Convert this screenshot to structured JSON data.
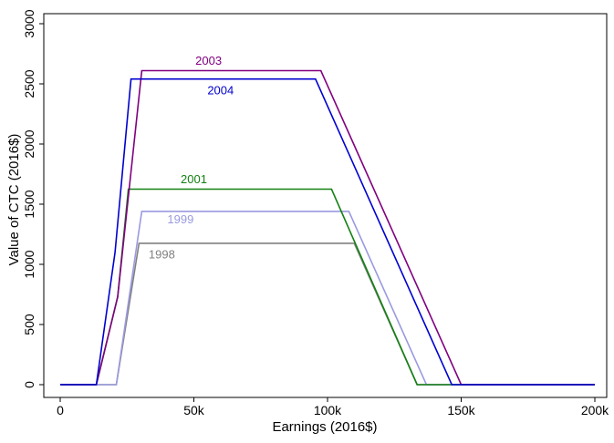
{
  "chart_data": {
    "type": "line",
    "title": "",
    "xlabel": "Earnings (2016$)",
    "ylabel": "Value of CTC (2016$)",
    "xlim": [
      0,
      200000
    ],
    "ylim": [
      0,
      3000
    ],
    "grid": false,
    "legend": "none",
    "x_ticks": [
      {
        "value": 0,
        "label": "0"
      },
      {
        "value": 50000,
        "label": "50k"
      },
      {
        "value": 100000,
        "label": "100k"
      },
      {
        "value": 150000,
        "label": "150k"
      },
      {
        "value": 200000,
        "label": "200k"
      }
    ],
    "y_ticks": [
      {
        "value": 0,
        "label": "0"
      },
      {
        "value": 500,
        "label": "500"
      },
      {
        "value": 1000,
        "label": "1000"
      },
      {
        "value": 1500,
        "label": "1500"
      },
      {
        "value": 2000,
        "label": "2000"
      },
      {
        "value": 2500,
        "label": "2500"
      },
      {
        "value": 3000,
        "label": "3000"
      }
    ],
    "series": [
      {
        "name": "1998",
        "color": "#808080",
        "label_at": [
          38000,
          1080
        ],
        "points": [
          [
            0,
            0
          ],
          [
            21000,
            0
          ],
          [
            29500,
            1175
          ],
          [
            110000,
            1175
          ],
          [
            133500,
            0
          ],
          [
            200000,
            0
          ]
        ]
      },
      {
        "name": "1999",
        "color": "#9a9ae0",
        "label_at": [
          45000,
          1370
        ],
        "points": [
          [
            0,
            0
          ],
          [
            21000,
            0
          ],
          [
            30500,
            1440
          ],
          [
            108000,
            1440
          ],
          [
            137000,
            0
          ],
          [
            200000,
            0
          ]
        ]
      },
      {
        "name": "2001",
        "color": "#138013",
        "label_at": [
          50000,
          1705
        ],
        "points": [
          [
            0,
            0
          ],
          [
            13500,
            0
          ],
          [
            21500,
            730
          ],
          [
            25500,
            1625
          ],
          [
            101500,
            1625
          ],
          [
            133500,
            0
          ],
          [
            200000,
            0
          ]
        ]
      },
      {
        "name": "2003",
        "color": "#800080",
        "label_at": [
          55500,
          2690
        ],
        "points": [
          [
            0,
            0
          ],
          [
            13500,
            0
          ],
          [
            21500,
            730
          ],
          [
            30500,
            2610
          ],
          [
            97500,
            2610
          ],
          [
            150000,
            0
          ],
          [
            200000,
            0
          ]
        ]
      },
      {
        "name": "2004",
        "color": "#0000d0",
        "label_at": [
          60000,
          2445
        ],
        "points": [
          [
            0,
            0
          ],
          [
            13500,
            0
          ],
          [
            20500,
            1100
          ],
          [
            26500,
            2540
          ],
          [
            95500,
            2540
          ],
          [
            146500,
            0
          ],
          [
            200000,
            0
          ]
        ]
      }
    ]
  }
}
